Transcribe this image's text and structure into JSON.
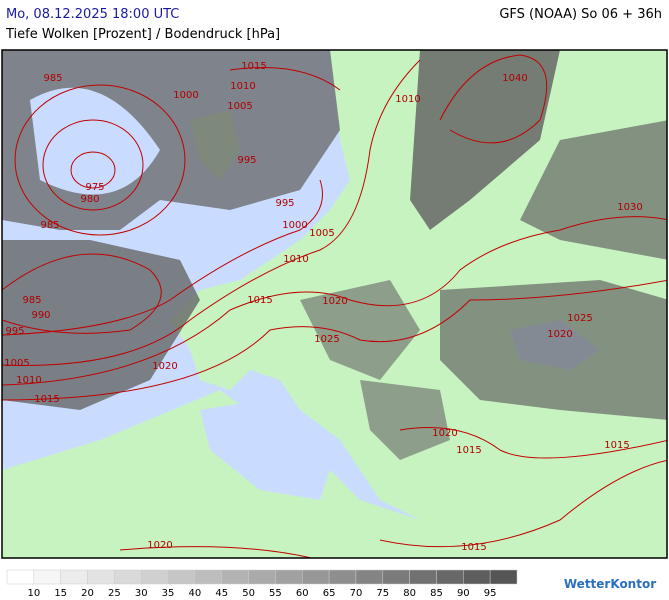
{
  "header": {
    "datetime": "Mo, 08.12.2025 18:00 UTC",
    "model": "GFS (NOAA) So 06 + 36h",
    "title": "Tiefe Wolken [Prozent] / Bodendruck [hPa]"
  },
  "isobar_labels": [
    985,
    1015,
    1010,
    1000,
    1005,
    1010,
    1040,
    995,
    975,
    980,
    985,
    995,
    1000,
    1005,
    1030,
    1010,
    985,
    1015,
    1020,
    990,
    995,
    1025,
    1020,
    1025,
    1005,
    1020,
    1010,
    1015,
    1020,
    1015,
    1015,
    1020,
    1015
  ],
  "legend": {
    "values": [
      10,
      15,
      20,
      25,
      30,
      35,
      40,
      45,
      50,
      55,
      60,
      65,
      70,
      75,
      80,
      85,
      90,
      95
    ]
  },
  "logo": "WetterKontor"
}
